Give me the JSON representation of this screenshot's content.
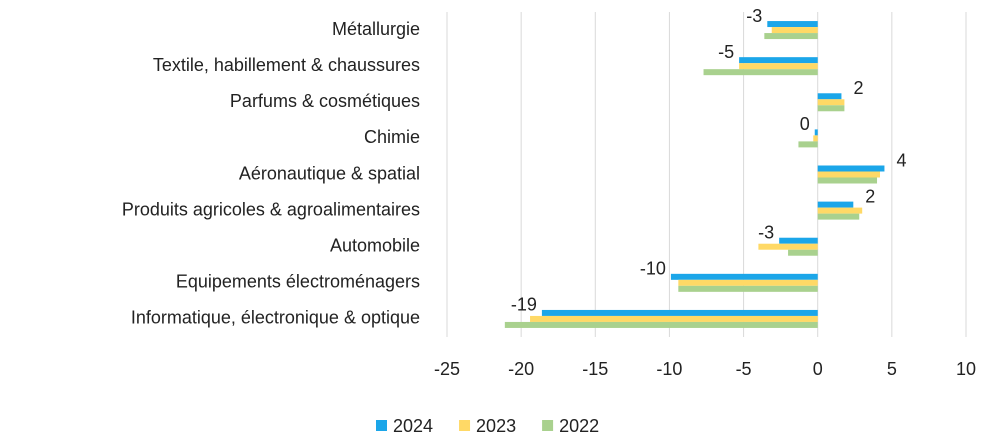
{
  "chart_data": {
    "type": "bar",
    "orientation": "horizontal",
    "categories": [
      "Métallurgie",
      "Textile, habillement & chaussures",
      "Parfums & cosmétiques",
      "Chimie",
      "Aéronautique & spatial",
      "Produits agricoles & agroalimentaires",
      "Automobile",
      "Equipements électroménagers",
      "Informatique, électronique & optique"
    ],
    "series": [
      {
        "name": "2024",
        "color": "#1ba6e9",
        "values": [
          -3.4,
          -5.3,
          1.6,
          -0.2,
          4.5,
          2.4,
          -2.6,
          -9.9,
          -18.6
        ],
        "value_labels": [
          "-3",
          "-5",
          "2",
          "0",
          "4",
          "2",
          "-3",
          "-10",
          "-19"
        ]
      },
      {
        "name": "2023",
        "color": "#ffd966",
        "values": [
          -3.1,
          -5.3,
          1.8,
          -0.3,
          4.2,
          3.0,
          -4.0,
          -9.4,
          -19.4
        ]
      },
      {
        "name": "2022",
        "color": "#a9d18e",
        "values": [
          -3.6,
          -7.7,
          1.8,
          -1.3,
          4.0,
          2.8,
          -2.0,
          -9.4,
          -21.1
        ]
      }
    ],
    "xlim": [
      -25,
      10
    ],
    "xticks": [
      -25,
      -20,
      -15,
      -10,
      -5,
      0,
      5,
      10
    ],
    "grid": true,
    "legend": "bottom"
  }
}
